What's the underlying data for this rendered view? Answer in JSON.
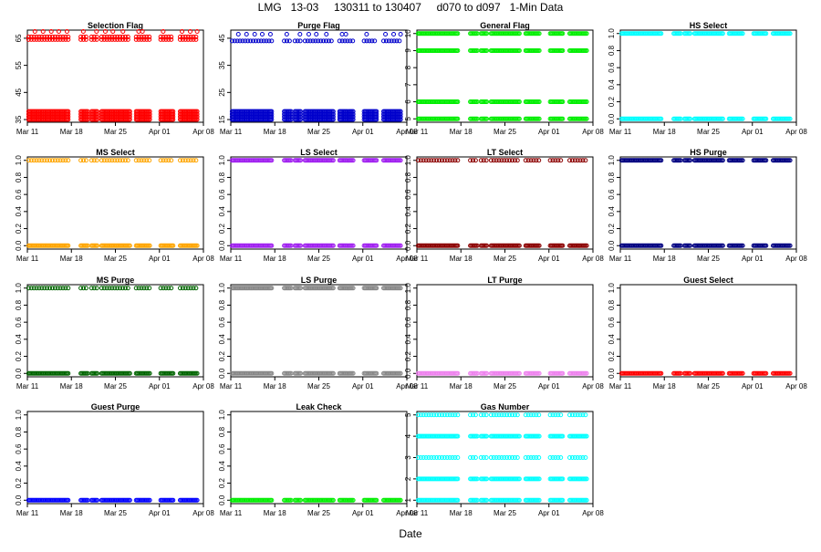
{
  "title": "LMG   13-03     130311 to 130407     d070 to d097   1-Min Data",
  "xlabel": "Date",
  "chart_data": [
    {
      "type": "scatter",
      "title": "Selection Flag",
      "color": "#ff0000",
      "yticks": [
        35,
        45,
        55,
        65
      ],
      "ylim": [
        34,
        68
      ],
      "xticks": [
        "Mar 11",
        "Mar 18",
        "Mar 25",
        "Apr 01",
        "Apr 08"
      ],
      "y": [
        {
          "value": 35.0,
          "band": true
        },
        {
          "value": 36.0,
          "band": true
        },
        {
          "value": 37.0,
          "band": true
        },
        {
          "value": 38.0,
          "band": true
        },
        {
          "value": 64.5,
          "band": false
        },
        {
          "value": 65.5,
          "band": false
        },
        {
          "value": 67.5,
          "band": false,
          "sparse": true
        }
      ]
    },
    {
      "type": "scatter",
      "title": "Purge Flag",
      "color": "#0000cc",
      "yticks": [
        15,
        25,
        35,
        45
      ],
      "ylim": [
        14,
        48
      ],
      "xticks": [
        "Mar 11",
        "Mar 18",
        "Mar 25",
        "Apr 01",
        "Apr 08"
      ],
      "y": [
        {
          "value": 15.0,
          "band": true
        },
        {
          "value": 16.0,
          "band": true
        },
        {
          "value": 17.0,
          "band": true
        },
        {
          "value": 18.0,
          "band": true
        },
        {
          "value": 44.0,
          "band": false
        },
        {
          "value": 46.5,
          "band": false,
          "sparse": true
        }
      ]
    },
    {
      "type": "scatter",
      "title": "General Flag",
      "color": "#00ee00",
      "yticks": [
        5,
        6,
        7,
        8,
        9,
        10
      ],
      "ylim": [
        4.8,
        10.2
      ],
      "xticks": [
        "Mar 11",
        "Mar 18",
        "Mar 25",
        "Apr 01",
        "Apr 08"
      ],
      "y": [
        {
          "value": 5,
          "band": true
        },
        {
          "value": 6,
          "band": true
        },
        {
          "value": 9,
          "band": true
        },
        {
          "value": 10,
          "band": true
        }
      ]
    },
    {
      "type": "scatter",
      "title": "HS Select",
      "color": "#00ffff",
      "yticks": [
        0.0,
        0.2,
        0.4,
        0.6,
        0.8,
        1.0
      ],
      "ylim": [
        -0.04,
        1.04
      ],
      "xticks": [
        "Mar 11",
        "Mar 18",
        "Mar 25",
        "Apr 01",
        "Apr 08"
      ],
      "y": [
        {
          "value": 0,
          "band": true
        },
        {
          "value": 1,
          "band": true
        }
      ]
    },
    {
      "type": "scatter",
      "title": "MS Select",
      "color": "#ffa500",
      "yticks": [
        0.0,
        0.2,
        0.4,
        0.6,
        0.8,
        1.0
      ],
      "ylim": [
        -0.04,
        1.04
      ],
      "xticks": [
        "Mar 11",
        "Mar 18",
        "Mar 25",
        "Apr 01",
        "Apr 08"
      ],
      "y": [
        {
          "value": 0,
          "band": true
        },
        {
          "value": 1,
          "band": false
        }
      ]
    },
    {
      "type": "scatter",
      "title": "LS Select",
      "color": "#a020f0",
      "yticks": [
        0.0,
        0.2,
        0.4,
        0.6,
        0.8,
        1.0
      ],
      "ylim": [
        -0.04,
        1.04
      ],
      "xticks": [
        "Mar 11",
        "Mar 18",
        "Mar 25",
        "Apr 01",
        "Apr 08"
      ],
      "y": [
        {
          "value": 0,
          "band": true
        },
        {
          "value": 1,
          "band": true
        }
      ]
    },
    {
      "type": "scatter",
      "title": "LT Select",
      "color": "#8b0000",
      "yticks": [
        0.0,
        0.2,
        0.4,
        0.6,
        0.8,
        1.0
      ],
      "ylim": [
        -0.04,
        1.04
      ],
      "xticks": [
        "Mar 11",
        "Mar 18",
        "Mar 25",
        "Apr 01",
        "Apr 08"
      ],
      "y": [
        {
          "value": 0,
          "band": true
        },
        {
          "value": 1,
          "band": false
        }
      ]
    },
    {
      "type": "scatter",
      "title": "HS Purge",
      "color": "#000080",
      "yticks": [
        0.0,
        0.2,
        0.4,
        0.6,
        0.8,
        1.0
      ],
      "ylim": [
        -0.04,
        1.04
      ],
      "xticks": [
        "Mar 11",
        "Mar 18",
        "Mar 25",
        "Apr 01",
        "Apr 08"
      ],
      "y": [
        {
          "value": 0,
          "band": true
        },
        {
          "value": 1,
          "band": true
        }
      ]
    },
    {
      "type": "scatter",
      "title": "MS Purge",
      "color": "#006400",
      "yticks": [
        0.0,
        0.2,
        0.4,
        0.6,
        0.8,
        1.0
      ],
      "ylim": [
        -0.04,
        1.04
      ],
      "xticks": [
        "Mar 11",
        "Mar 18",
        "Mar 25",
        "Apr 01",
        "Apr 08"
      ],
      "y": [
        {
          "value": 0,
          "band": true
        },
        {
          "value": 1,
          "band": false
        }
      ]
    },
    {
      "type": "scatter",
      "title": "LS Purge",
      "color": "#888888",
      "yticks": [
        0.0,
        0.2,
        0.4,
        0.6,
        0.8,
        1.0
      ],
      "ylim": [
        -0.04,
        1.04
      ],
      "xticks": [
        "Mar 11",
        "Mar 18",
        "Mar 25",
        "Apr 01",
        "Apr 08"
      ],
      "y": [
        {
          "value": 0,
          "band": true
        },
        {
          "value": 1,
          "band": true
        }
      ]
    },
    {
      "type": "scatter",
      "title": "LT Purge",
      "color": "#ee82ee",
      "yticks": [
        0.0,
        0.2,
        0.4,
        0.6,
        0.8,
        1.0
      ],
      "ylim": [
        -0.04,
        1.04
      ],
      "xticks": [
        "Mar 11",
        "Mar 18",
        "Mar 25",
        "Apr 01",
        "Apr 08"
      ],
      "y": [
        {
          "value": 0,
          "band": true
        }
      ]
    },
    {
      "type": "scatter",
      "title": "Guest Select",
      "color": "#ff0000",
      "yticks": [
        0.0,
        0.2,
        0.4,
        0.6,
        0.8,
        1.0
      ],
      "ylim": [
        -0.04,
        1.04
      ],
      "xticks": [
        "Mar 11",
        "Mar 18",
        "Mar 25",
        "Apr 01",
        "Apr 08"
      ],
      "y": [
        {
          "value": 0,
          "band": true
        }
      ]
    },
    {
      "type": "scatter",
      "title": "Guest Purge",
      "color": "#0000ff",
      "yticks": [
        0.0,
        0.2,
        0.4,
        0.6,
        0.8,
        1.0
      ],
      "ylim": [
        -0.04,
        1.04
      ],
      "xticks": [
        "Mar 11",
        "Mar 18",
        "Mar 25",
        "Apr 01",
        "Apr 08"
      ],
      "y": [
        {
          "value": 0,
          "band": true
        }
      ]
    },
    {
      "type": "scatter",
      "title": "Leak Check",
      "color": "#00ee00",
      "yticks": [
        0.0,
        0.2,
        0.4,
        0.6,
        0.8,
        1.0
      ],
      "ylim": [
        -0.04,
        1.04
      ],
      "xticks": [
        "Mar 11",
        "Mar 18",
        "Mar 25",
        "Apr 01",
        "Apr 08"
      ],
      "y": [
        {
          "value": 0,
          "band": true
        }
      ]
    },
    {
      "type": "scatter",
      "title": "Gas Number",
      "color": "#00ffff",
      "yticks": [
        1,
        2,
        3,
        4,
        5
      ],
      "ylim": [
        0.84,
        5.16
      ],
      "xticks": [
        "Mar 11",
        "Mar 18",
        "Mar 25",
        "Apr 01",
        "Apr 08"
      ],
      "y": [
        {
          "value": 1,
          "band": true
        },
        {
          "value": 2,
          "band": true
        },
        {
          "value": 3,
          "band": false
        },
        {
          "value": 4,
          "band": true
        },
        {
          "value": 5,
          "band": false
        }
      ]
    }
  ]
}
